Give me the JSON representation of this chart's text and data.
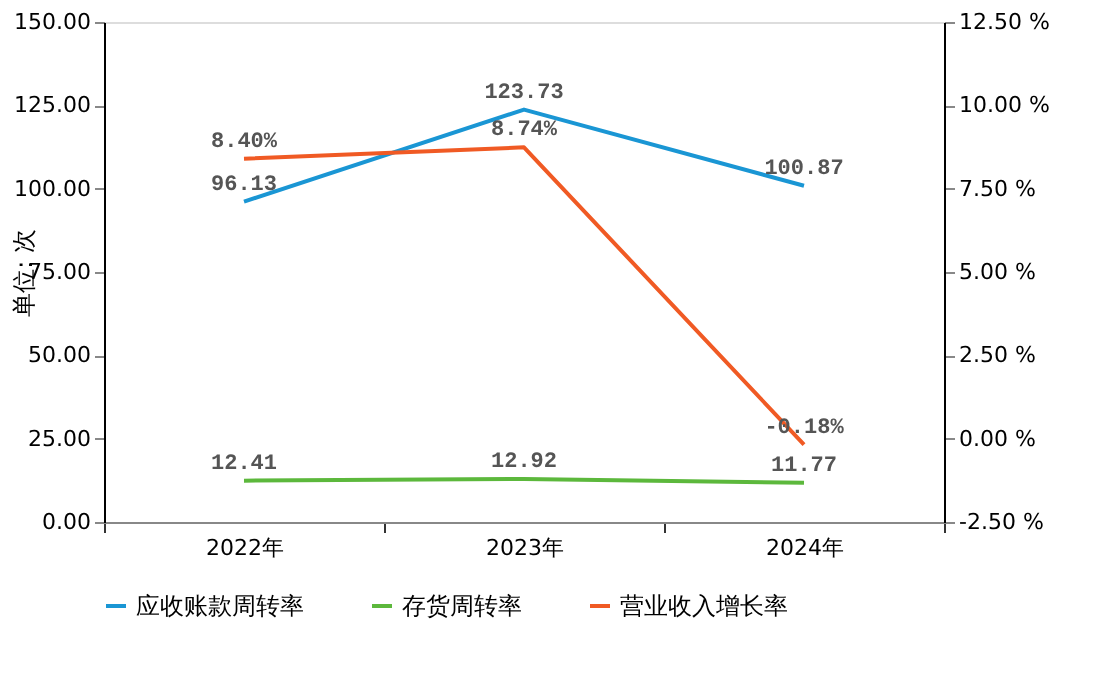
{
  "chart_data": {
    "type": "line",
    "ylabel": "单位: 次",
    "categories": [
      "2022年",
      "2023年",
      "2024年"
    ],
    "series": [
      {
        "name": "应收账款周转率",
        "color": "#1a96d4",
        "values": [
          96.13,
          123.73,
          100.87
        ],
        "value_labels": [
          "96.13",
          "123.73",
          "100.87"
        ]
      },
      {
        "name": "存货周转率",
        "color": "#5cb83c",
        "values": [
          12.41,
          12.92,
          11.77
        ],
        "value_labels": [
          "12.41",
          "12.92",
          "11.77"
        ]
      },
      {
        "name": "营业收入增长率",
        "color": "#f05a24",
        "axis": "y2",
        "values": [
          8.4,
          8.74,
          -0.18
        ],
        "value_labels": [
          "8.40%",
          "8.74%",
          "-0.18%"
        ]
      }
    ],
    "ylim": [
      0,
      150
    ],
    "yticks": [
      {
        "value": 0,
        "label": "0.00"
      },
      {
        "value": 25,
        "label": "25.00"
      },
      {
        "value": 50,
        "label": "50.00"
      },
      {
        "value": 75,
        "label": "75.00"
      },
      {
        "value": 100,
        "label": "100.00"
      },
      {
        "value": 125,
        "label": "125.00"
      },
      {
        "value": 150,
        "label": "150.00"
      }
    ],
    "y2lim": [
      -2.5,
      12.5
    ],
    "y2ticks": [
      {
        "value": -2.5,
        "label": "-2.50 %"
      },
      {
        "value": 0,
        "label": "0.00 %"
      },
      {
        "value": 2.5,
        "label": "2.50 %"
      },
      {
        "value": 5,
        "label": "5.00 %"
      },
      {
        "value": 7.5,
        "label": "7.50 %"
      },
      {
        "value": 10,
        "label": "10.00 %"
      },
      {
        "value": 12.5,
        "label": "12.50 %"
      }
    ],
    "grid": false,
    "legend": "bottom",
    "marker": "none",
    "line_style": "solid"
  }
}
